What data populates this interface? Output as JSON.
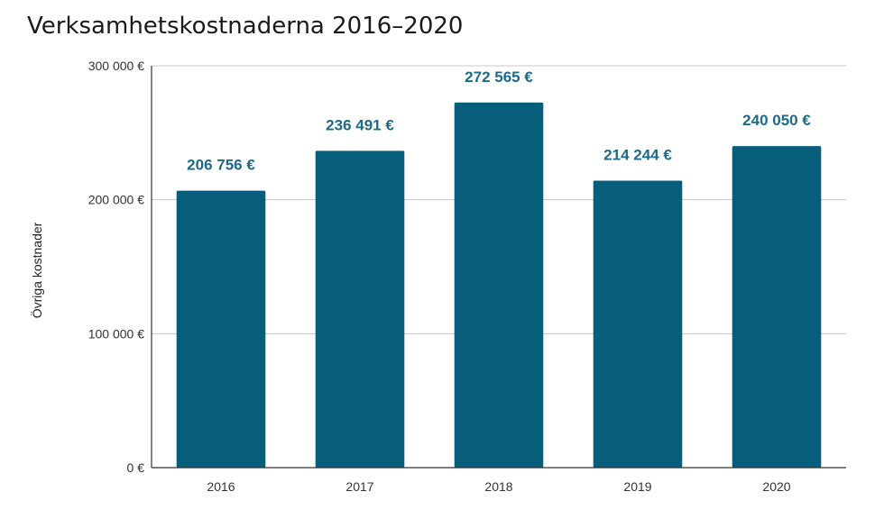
{
  "chart_data": {
    "type": "bar",
    "title": "Verksamhetskostnaderna 2016–2020",
    "xlabel": "",
    "ylabel": "Övriga kostnader",
    "categories": [
      "2016",
      "2017",
      "2018",
      "2019",
      "2020"
    ],
    "values": [
      206756,
      236491,
      272565,
      214244,
      240050
    ],
    "data_labels": [
      "206 756 €",
      "236 491 €",
      "272 565 €",
      "214 244 €",
      "240 050 €"
    ],
    "ylim": [
      0,
      300000
    ],
    "yticks": [
      0,
      100000,
      200000,
      300000
    ],
    "ytick_labels": [
      "0 €",
      "100 000 €",
      "200 000 €",
      "300 000 €"
    ],
    "grid": true,
    "legend": "none",
    "colors": {
      "bar": "#075e7a",
      "label": "#1e6a86"
    }
  }
}
